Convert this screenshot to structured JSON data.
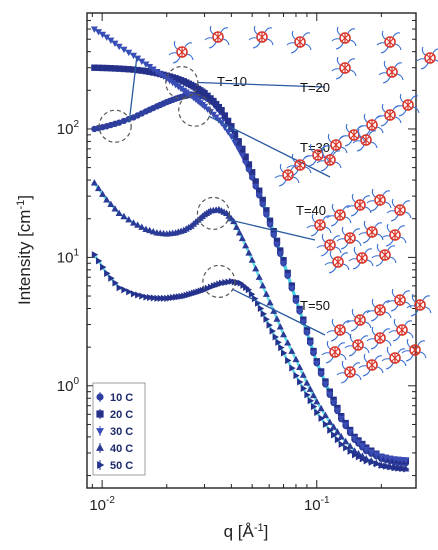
{
  "chart_data": {
    "type": "scatter",
    "xlabel": "q  [Å",
    "xlabel_sup": "-1",
    "xlabel_end": "]",
    "ylabel": "Intensity  [cm",
    "ylabel_sup": "-1",
    "ylabel_end": "]",
    "x_scale": "log",
    "y_scale": "log",
    "xlim": [
      0.0085,
      0.29
    ],
    "ylim": [
      0.16,
      800
    ],
    "x_ticks": [
      {
        "value": 0.01,
        "base": "10",
        "exp": "-2"
      },
      {
        "value": 0.1,
        "base": "10",
        "exp": "-1"
      }
    ],
    "y_ticks": [
      {
        "value": 1,
        "base": "10",
        "exp": "0"
      },
      {
        "value": 10,
        "base": "10",
        "exp": "1"
      },
      {
        "value": 100,
        "base": "10",
        "exp": "2"
      }
    ],
    "grid": false,
    "legend_position": "bottom-left",
    "series": [
      {
        "name": "10 C",
        "marker": "circle",
        "color": "#2f3f9e",
        "x": [
          0.0092,
          0.0105,
          0.012,
          0.014,
          0.016,
          0.018,
          0.02,
          0.022,
          0.024,
          0.026,
          0.028,
          0.03,
          0.033,
          0.036,
          0.04,
          0.045,
          0.05,
          0.056,
          0.063,
          0.07,
          0.08,
          0.09,
          0.1,
          0.115,
          0.13,
          0.15,
          0.17,
          0.2,
          0.23,
          0.26
        ],
        "y": [
          100,
          105,
          112,
          123,
          137,
          150,
          162,
          172,
          180,
          185,
          185,
          178,
          160,
          135,
          100,
          65,
          42,
          26,
          15,
          9,
          4.6,
          2.6,
          1.5,
          0.85,
          0.55,
          0.38,
          0.31,
          0.27,
          0.255,
          0.25
        ]
      },
      {
        "name": "20 C",
        "marker": "square",
        "color": "#24308a",
        "x": [
          0.0092,
          0.0105,
          0.012,
          0.014,
          0.016,
          0.018,
          0.02,
          0.022,
          0.024,
          0.026,
          0.028,
          0.03,
          0.033,
          0.036,
          0.04,
          0.045,
          0.05,
          0.056,
          0.063,
          0.07,
          0.08,
          0.09,
          0.1,
          0.115,
          0.13,
          0.15,
          0.17,
          0.2,
          0.23,
          0.26
        ],
        "y": [
          300,
          298,
          295,
          290,
          282,
          272,
          260,
          248,
          235,
          220,
          205,
          190,
          165,
          140,
          105,
          70,
          46,
          28,
          16,
          9.5,
          4.8,
          2.7,
          1.55,
          0.9,
          0.58,
          0.4,
          0.33,
          0.28,
          0.265,
          0.26
        ]
      },
      {
        "name": "30 C",
        "marker": "triangle-down",
        "color": "#3a4cb5",
        "x": [
          0.0092,
          0.0105,
          0.012,
          0.014,
          0.016,
          0.018,
          0.02,
          0.022,
          0.024,
          0.026,
          0.028,
          0.03,
          0.033,
          0.036,
          0.04,
          0.045,
          0.05,
          0.056,
          0.063,
          0.07,
          0.08,
          0.09,
          0.1,
          0.115,
          0.13,
          0.15,
          0.17,
          0.2,
          0.23,
          0.26
        ],
        "y": [
          600,
          520,
          440,
          375,
          320,
          280,
          248,
          222,
          200,
          182,
          165,
          150,
          130,
          112,
          88,
          62,
          42,
          26,
          15,
          9,
          4.6,
          2.6,
          1.5,
          0.86,
          0.56,
          0.39,
          0.32,
          0.28,
          0.27,
          0.265
        ]
      },
      {
        "name": "40 C",
        "marker": "triangle-up",
        "color": "#2b3a96",
        "x": [
          0.0092,
          0.0105,
          0.012,
          0.014,
          0.016,
          0.018,
          0.02,
          0.022,
          0.024,
          0.026,
          0.028,
          0.03,
          0.032,
          0.035,
          0.038,
          0.041,
          0.045,
          0.05,
          0.056,
          0.063,
          0.07,
          0.08,
          0.09,
          0.1,
          0.115,
          0.13,
          0.15,
          0.17,
          0.2,
          0.23,
          0.26
        ],
        "y": [
          38,
          28,
          22,
          18.5,
          16.5,
          15.5,
          15.2,
          15.5,
          16.2,
          17.5,
          19.5,
          21.5,
          23,
          23.5,
          22,
          19,
          14,
          9.5,
          6,
          3.8,
          2.5,
          1.6,
          1.05,
          0.75,
          0.52,
          0.4,
          0.31,
          0.27,
          0.24,
          0.23,
          0.225
        ]
      },
      {
        "name": "50 C",
        "marker": "triangle-right",
        "color": "#25328d",
        "x": [
          0.0092,
          0.0105,
          0.012,
          0.014,
          0.016,
          0.018,
          0.02,
          0.022,
          0.024,
          0.026,
          0.028,
          0.03,
          0.033,
          0.036,
          0.04,
          0.044,
          0.048,
          0.053,
          0.058,
          0.064,
          0.07,
          0.08,
          0.09,
          0.1,
          0.115,
          0.13,
          0.15,
          0.17,
          0.2,
          0.23,
          0.26
        ],
        "y": [
          10.5,
          7.5,
          5.8,
          5.2,
          4.9,
          4.8,
          4.8,
          4.9,
          5.0,
          5.2,
          5.4,
          5.6,
          6.0,
          6.3,
          6.5,
          6.3,
          5.6,
          4.4,
          3.3,
          2.4,
          1.8,
          1.2,
          0.85,
          0.62,
          0.45,
          0.35,
          0.29,
          0.26,
          0.24,
          0.23,
          0.225
        ]
      }
    ],
    "annotations": [
      {
        "label": "T=10",
        "circle_at": [
          0.0115,
          105
        ],
        "line_to": [
          0.02,
          430
        ],
        "structure": "isolated micelles"
      },
      {
        "label": "T=20",
        "circle_at": [
          0.0235,
          230
        ],
        "line_to": [
          0.06,
          230
        ],
        "structure": "micelle clusters"
      },
      {
        "label": "T=30",
        "circle_at": [
          0.027,
          140
        ],
        "line_to": [
          0.06,
          55
        ],
        "structure": "chains of micelles"
      },
      {
        "label": "T=40",
        "circle_at": [
          0.033,
          22
        ],
        "line_to": [
          0.06,
          8
        ],
        "structure": "network"
      },
      {
        "label": "T=50",
        "circle_at": [
          0.035,
          6.5
        ],
        "line_to": [
          0.06,
          2.3
        ],
        "structure": "dense network"
      }
    ]
  },
  "colors": {
    "axis": "#222222",
    "circle_outline": "#555555",
    "micelle_core": "#d9352b",
    "micelle_corona": "#3a6fd1",
    "fit_line": "#45d4e0",
    "pointer_line": "#2a5aa0"
  }
}
